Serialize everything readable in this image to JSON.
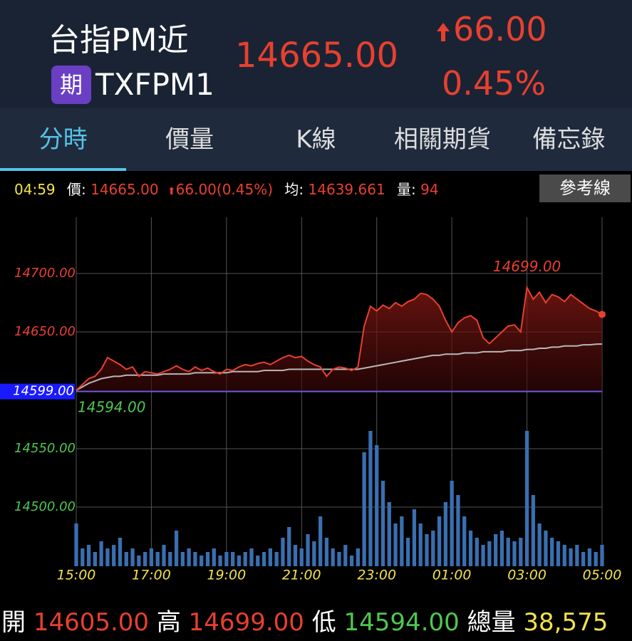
{
  "header": {
    "title": "台指PM近",
    "badge": "期",
    "code": "TXFPM1",
    "price": "14665.00",
    "change": "66.00",
    "change_percent": "0.45%"
  },
  "tabs": {
    "items": [
      "分時",
      "價量",
      "K線",
      "相關期貨",
      "備忘錄"
    ],
    "selected": 0
  },
  "info": {
    "time": "04:59",
    "price_label": "價:",
    "price": "14665.00",
    "change": "66.00(0.45%)",
    "avg_label": "均:",
    "avg": "14639.661",
    "vol_label": "量:",
    "vol": "94",
    "button": "參考線"
  },
  "footer": {
    "open_label": "開",
    "open": "14605.00",
    "high_label": "高",
    "high": "14699.00",
    "low_label": "低",
    "low": "14594.00",
    "total_label": "總量",
    "total": "38,575"
  },
  "chart_data": {
    "type": "line",
    "categories": [
      "15:00",
      null,
      null,
      null,
      null,
      null,
      null,
      null,
      null,
      null,
      null,
      null,
      "17:00",
      null,
      null,
      null,
      null,
      null,
      null,
      null,
      null,
      null,
      null,
      null,
      "19:00",
      null,
      null,
      null,
      null,
      null,
      null,
      null,
      null,
      null,
      null,
      null,
      "21:00",
      null,
      null,
      null,
      null,
      null,
      null,
      null,
      null,
      null,
      null,
      null,
      "23:00",
      null,
      null,
      null,
      null,
      null,
      null,
      null,
      null,
      null,
      null,
      null,
      "01:00",
      null,
      null,
      null,
      null,
      null,
      null,
      null,
      null,
      null,
      null,
      null,
      "03:00",
      null,
      null,
      null,
      null,
      null,
      null,
      null,
      null,
      null,
      null,
      null,
      "05:00"
    ],
    "price": {
      "color": "#e8402f",
      "values": [
        14600,
        14605,
        14610,
        14612,
        14618,
        14628,
        14625,
        14622,
        14618,
        14620,
        14612,
        14616,
        14615,
        14614,
        14616,
        14618,
        14621,
        14618,
        14616,
        14620,
        14617,
        14619,
        14616,
        14614,
        14618,
        14617,
        14620,
        14622,
        14621,
        14623,
        14624,
        14622,
        14625,
        14628,
        14630,
        14628,
        14629,
        14625,
        14622,
        14620,
        14612,
        14618,
        14620,
        14619,
        14617,
        14620,
        14655,
        14672,
        14668,
        14673,
        14670,
        14675,
        14672,
        14676,
        14678,
        14683,
        14682,
        14678,
        14672,
        14660,
        14650,
        14658,
        14662,
        14664,
        14660,
        14645,
        14640,
        14645,
        14650,
        14655,
        14656,
        14650,
        14688,
        14678,
        14684,
        14675,
        14682,
        14680,
        14676,
        14682,
        14678,
        14674,
        14670,
        14668,
        14665
      ]
    },
    "average": {
      "color": "#b8b8b8",
      "values": [
        14600,
        14603,
        14606,
        14608,
        14610,
        14611,
        14612,
        14612,
        14613,
        14613,
        14613,
        14613,
        14613,
        14613,
        14614,
        14614,
        14614,
        14614,
        14614,
        14615,
        14615,
        14615,
        14615,
        14615,
        14615,
        14616,
        14616,
        14616,
        14616,
        14616,
        14617,
        14617,
        14617,
        14617,
        14618,
        14618,
        14618,
        14618,
        14618,
        14618,
        14618,
        14618,
        14618,
        14618,
        14618,
        14618,
        14619,
        14620,
        14621,
        14622,
        14623,
        14624,
        14625,
        14626,
        14627,
        14628,
        14629,
        14630,
        14630,
        14631,
        14631,
        14631,
        14632,
        14632,
        14632,
        14633,
        14633,
        14633,
        14633,
        14634,
        14634,
        14634,
        14635,
        14635,
        14636,
        14636,
        14637,
        14637,
        14638,
        14638,
        14638,
        14639,
        14639,
        14639.5,
        14639.661
      ]
    },
    "volume": {
      "color": "#3a6fb0",
      "values": [
        60,
        25,
        30,
        20,
        35,
        25,
        30,
        40,
        20,
        25,
        15,
        20,
        25,
        20,
        30,
        20,
        50,
        20,
        25,
        20,
        15,
        20,
        25,
        15,
        20,
        20,
        15,
        20,
        25,
        15,
        20,
        25,
        20,
        40,
        55,
        30,
        25,
        45,
        35,
        70,
        40,
        25,
        20,
        30,
        15,
        25,
        160,
        190,
        170,
        120,
        90,
        60,
        70,
        40,
        80,
        60,
        45,
        50,
        70,
        90,
        120,
        100,
        70,
        50,
        40,
        30,
        35,
        45,
        50,
        40,
        35,
        40,
        190,
        100,
        60,
        50,
        40,
        35,
        30,
        25,
        30,
        20,
        25,
        20,
        30
      ]
    },
    "ylim": [
      14449.4,
      14748.2
    ],
    "yticks": [
      {
        "value": 14700,
        "label": "14700.00"
      },
      {
        "value": 14650,
        "label": "14650.00"
      },
      {
        "value": 14550,
        "label": "14550.00"
      },
      {
        "value": 14500,
        "label": "14500.00"
      }
    ],
    "reference": {
      "value": 14599,
      "label": "14599.00"
    },
    "high": {
      "value": 14699,
      "label": "14699.00"
    },
    "low": {
      "value": 14594,
      "label": "14594.00"
    },
    "grid": true
  }
}
